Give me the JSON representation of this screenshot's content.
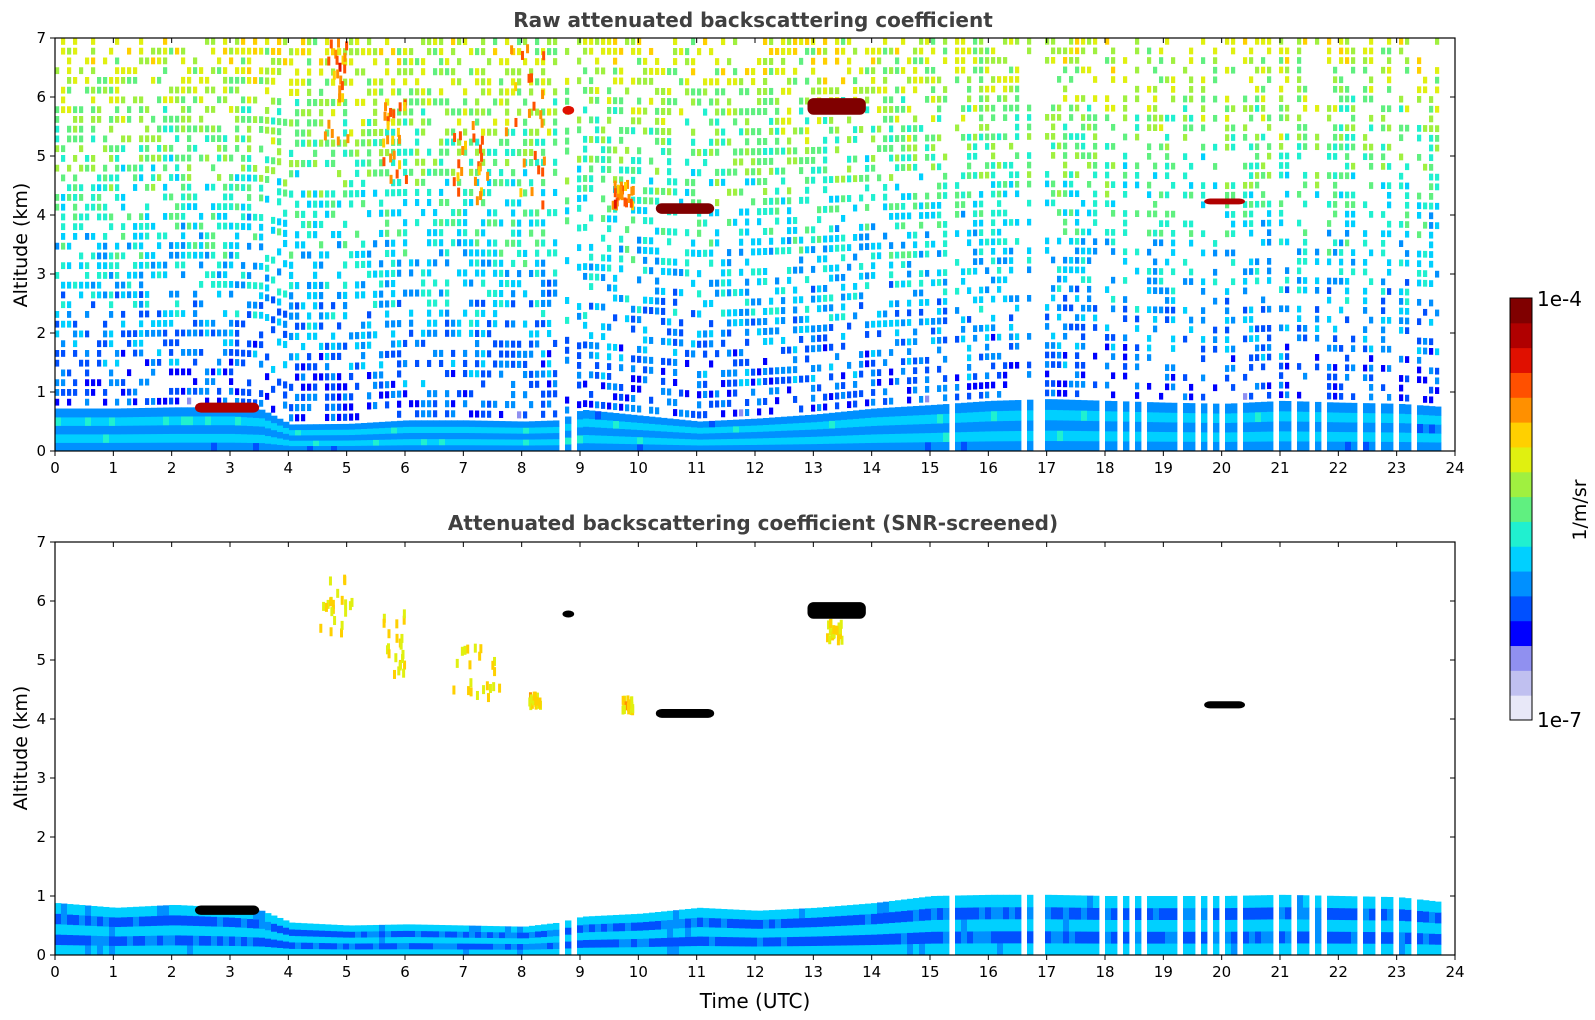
{
  "chart_data": [
    {
      "type": "heatmap",
      "title": "Raw attenuated backscattering coefficient",
      "xlabel": "",
      "ylabel": "Altitude (km)",
      "xlim": [
        0,
        24
      ],
      "ylim": [
        0,
        7
      ],
      "x_ticks": [
        "0",
        "1",
        "2",
        "3",
        "4",
        "5",
        "6",
        "7",
        "8",
        "9",
        "10",
        "11",
        "12",
        "13",
        "14",
        "15",
        "16",
        "17",
        "18",
        "19",
        "20",
        "21",
        "22",
        "23",
        "24"
      ],
      "y_ticks": [
        "0",
        "1",
        "2",
        "3",
        "4",
        "5",
        "6",
        "7"
      ],
      "boundary_layer_top_km": [
        [
          0,
          0.72
        ],
        [
          1,
          0.72
        ],
        [
          2,
          0.74
        ],
        [
          3,
          0.74
        ],
        [
          3.5,
          0.7
        ],
        [
          4,
          0.45
        ],
        [
          5,
          0.46
        ],
        [
          6,
          0.52
        ],
        [
          7,
          0.52
        ],
        [
          8,
          0.5
        ],
        [
          8.6,
          0.52
        ],
        [
          9,
          0.7
        ],
        [
          10,
          0.6
        ],
        [
          11,
          0.5
        ],
        [
          12,
          0.55
        ],
        [
          13,
          0.62
        ],
        [
          14,
          0.72
        ],
        [
          15,
          0.78
        ],
        [
          16,
          0.85
        ],
        [
          17,
          0.88
        ],
        [
          18,
          0.85
        ],
        [
          19,
          0.82
        ],
        [
          20,
          0.8
        ],
        [
          21,
          0.85
        ],
        [
          22,
          0.82
        ],
        [
          23,
          0.8
        ],
        [
          23.7,
          0.75
        ]
      ],
      "cloud_layers": [
        {
          "x0": 2.4,
          "x1": 3.5,
          "y0": 0.65,
          "y1": 0.82,
          "level": 0.95
        },
        {
          "x0": 10.3,
          "x1": 11.3,
          "y0": 4.02,
          "y1": 4.2,
          "level": 1.0
        },
        {
          "x0": 12.9,
          "x1": 13.9,
          "y0": 5.7,
          "y1": 5.98,
          "level": 1.0
        },
        {
          "x0": 19.7,
          "x1": 20.4,
          "y0": 4.18,
          "y1": 4.28,
          "level": 0.95
        },
        {
          "x0": 8.7,
          "x1": 8.9,
          "y0": 5.7,
          "y1": 5.85,
          "level": 0.9
        }
      ],
      "aerosol_plumes": [
        {
          "x0": 4.6,
          "x1": 5.0,
          "y0": 5.3,
          "y1": 7.0
        },
        {
          "x0": 5.6,
          "x1": 6.0,
          "y0": 4.6,
          "y1": 6.0
        },
        {
          "x0": 6.8,
          "x1": 7.4,
          "y0": 4.3,
          "y1": 5.6
        },
        {
          "x0": 7.7,
          "x1": 8.4,
          "y0": 4.2,
          "y1": 6.9
        },
        {
          "x0": 9.5,
          "x1": 9.9,
          "y0": 4.2,
          "y1": 4.6
        }
      ],
      "missing_data_gaps": [
        [
          8.6,
          8.72
        ],
        [
          8.84,
          8.92
        ],
        [
          15.3,
          15.42
        ],
        [
          16.5,
          16.62
        ],
        [
          16.76,
          16.88
        ],
        [
          17.8,
          17.92
        ],
        [
          18.15,
          18.25
        ],
        [
          18.35,
          18.45
        ],
        [
          18.55,
          18.65
        ],
        [
          19.15,
          19.25
        ],
        [
          19.45,
          19.55
        ],
        [
          19.65,
          19.75
        ],
        [
          19.95,
          20.05
        ],
        [
          20.25,
          20.32
        ],
        [
          20.85,
          20.97
        ],
        [
          21.15,
          21.25
        ],
        [
          21.45,
          21.55
        ],
        [
          21.7,
          21.78
        ],
        [
          22.3,
          22.42
        ],
        [
          22.6,
          22.7
        ],
        [
          22.85,
          22.95
        ],
        [
          23.2,
          23.3
        ]
      ],
      "data_end_hour": 23.7,
      "colorscale": "jet"
    },
    {
      "type": "heatmap",
      "title": "Attenuated backscattering coefficient (SNR-screened)",
      "xlabel": "Time (UTC)",
      "ylabel": "Altitude (km)",
      "xlim": [
        0,
        24
      ],
      "ylim": [
        0,
        7
      ],
      "x_ticks": [
        "0",
        "1",
        "2",
        "3",
        "4",
        "5",
        "6",
        "7",
        "8",
        "9",
        "10",
        "11",
        "12",
        "13",
        "14",
        "15",
        "16",
        "17",
        "18",
        "19",
        "20",
        "21",
        "22",
        "23",
        "24"
      ],
      "y_ticks": [
        "0",
        "1",
        "2",
        "3",
        "4",
        "5",
        "6",
        "7"
      ],
      "boundary_layer_top_km": [
        [
          0,
          0.88
        ],
        [
          1,
          0.8
        ],
        [
          2,
          0.85
        ],
        [
          3,
          0.8
        ],
        [
          3.5,
          0.75
        ],
        [
          4,
          0.55
        ],
        [
          5,
          0.5
        ],
        [
          6,
          0.52
        ],
        [
          7,
          0.5
        ],
        [
          8,
          0.48
        ],
        [
          8.6,
          0.55
        ],
        [
          9,
          0.65
        ],
        [
          10,
          0.7
        ],
        [
          11,
          0.8
        ],
        [
          12,
          0.75
        ],
        [
          13,
          0.8
        ],
        [
          14,
          0.88
        ],
        [
          15,
          1.0
        ],
        [
          16,
          1.02
        ],
        [
          17,
          1.02
        ],
        [
          18,
          1.0
        ],
        [
          19,
          1.0
        ],
        [
          20,
          1.0
        ],
        [
          21,
          1.02
        ],
        [
          22,
          1.0
        ],
        [
          23,
          0.98
        ],
        [
          23.7,
          0.9
        ]
      ],
      "cloud_layers": [
        {
          "x0": 2.4,
          "x1": 3.5,
          "y0": 0.68,
          "y1": 0.84,
          "level": 1.0
        },
        {
          "x0": 10.3,
          "x1": 11.3,
          "y0": 4.02,
          "y1": 4.17,
          "level": 1.0
        },
        {
          "x0": 12.9,
          "x1": 13.9,
          "y0": 5.7,
          "y1": 5.98,
          "level": 1.0
        },
        {
          "x0": 19.7,
          "x1": 20.4,
          "y0": 4.18,
          "y1": 4.3,
          "level": 1.0
        },
        {
          "x0": 8.7,
          "x1": 8.9,
          "y0": 5.72,
          "y1": 5.84,
          "level": 1.0
        }
      ],
      "aerosol_plumes": [
        {
          "x0": 4.5,
          "x1": 5.1,
          "y0": 5.5,
          "y1": 6.45
        },
        {
          "x0": 5.6,
          "x1": 6.0,
          "y0": 4.8,
          "y1": 5.9
        },
        {
          "x0": 6.8,
          "x1": 7.6,
          "y0": 4.4,
          "y1": 5.3
        },
        {
          "x0": 8.1,
          "x1": 8.3,
          "y0": 4.3,
          "y1": 4.5
        },
        {
          "x0": 9.7,
          "x1": 9.9,
          "y0": 4.2,
          "y1": 4.4
        },
        {
          "x0": 13.2,
          "x1": 13.5,
          "y0": 5.4,
          "y1": 5.7
        }
      ],
      "missing_data_gaps": [
        [
          8.6,
          8.72
        ],
        [
          8.84,
          8.92
        ],
        [
          15.3,
          15.42
        ],
        [
          16.5,
          16.62
        ],
        [
          16.76,
          16.88
        ],
        [
          17.8,
          17.92
        ],
        [
          18.15,
          18.25
        ],
        [
          18.35,
          18.45
        ],
        [
          18.55,
          18.65
        ],
        [
          19.15,
          19.25
        ],
        [
          19.45,
          19.55
        ],
        [
          19.65,
          19.75
        ],
        [
          19.95,
          20.05
        ],
        [
          20.25,
          20.32
        ],
        [
          20.85,
          20.97
        ],
        [
          21.15,
          21.25
        ],
        [
          21.45,
          21.55
        ],
        [
          21.7,
          21.78
        ],
        [
          22.3,
          22.42
        ],
        [
          22.6,
          22.7
        ],
        [
          22.85,
          22.95
        ],
        [
          23.2,
          23.3
        ]
      ],
      "data_end_hour": 23.7,
      "colorscale": "jet"
    }
  ],
  "colorbar": {
    "max_label": "1e-4",
    "min_label": "1e-7",
    "unit_label": "1/m/sr",
    "colors": [
      "#e8e8f8",
      "#c0c0f0",
      "#9090f0",
      "#0000ff",
      "#0050ff",
      "#0090ff",
      "#00d0ff",
      "#20f0d0",
      "#60f080",
      "#a0f040",
      "#e0f010",
      "#ffd000",
      "#ff9000",
      "#ff5000",
      "#e01000",
      "#b00000",
      "#800000"
    ]
  }
}
